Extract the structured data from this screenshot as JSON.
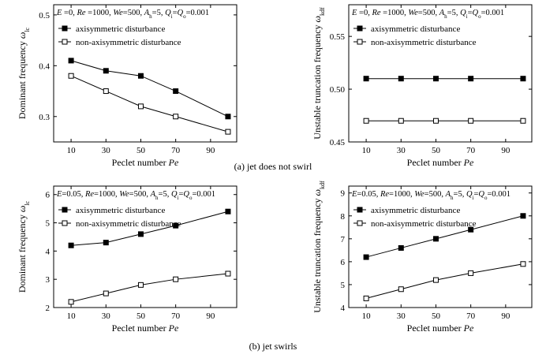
{
  "caption_a": "(a) jet does not swirl",
  "caption_b": "(b) jet swirls",
  "colors": {
    "line": "#000000",
    "background": "#ffffff"
  },
  "chart_data": [
    {
      "type": "line",
      "panel": "a-left",
      "condition": "E =0, Re =1000, We=500, A_h=5, Q_i=Q_o=0.001",
      "xlabel": "Peclet number Pe",
      "ylabel": "Dominant frequency ω_lc",
      "xticks": [
        10,
        30,
        50,
        70,
        90
      ],
      "yticks": [
        0.3,
        0.4,
        0.5
      ],
      "xlim": [
        0,
        105
      ],
      "ylim": [
        0.25,
        0.52
      ],
      "x": [
        10,
        30,
        50,
        70,
        100
      ],
      "series": [
        {
          "name": "axisymmetric disturbance",
          "marker": "filled-square",
          "values": [
            0.41,
            0.39,
            0.38,
            0.35,
            0.3
          ]
        },
        {
          "name": "non-axisymmetric disturbance",
          "marker": "open-square",
          "values": [
            0.38,
            0.35,
            0.32,
            0.3,
            0.27
          ]
        }
      ],
      "legend": "top-left"
    },
    {
      "type": "line",
      "panel": "a-right",
      "condition": "E =0, Re =1000, We=500, A_h=5, Q_i=Q_o=0.001",
      "xlabel": "Peclet number Pe",
      "ylabel": "Unstable truncation frequency ω_kdf",
      "xticks": [
        10,
        30,
        50,
        70,
        90
      ],
      "yticks": [
        0.45,
        0.5,
        0.55
      ],
      "xlim": [
        0,
        105
      ],
      "ylim": [
        0.45,
        0.58
      ],
      "x": [
        10,
        30,
        50,
        70,
        100
      ],
      "series": [
        {
          "name": "axisymmetric disturbance",
          "marker": "filled-square",
          "values": [
            0.51,
            0.51,
            0.51,
            0.51,
            0.51
          ]
        },
        {
          "name": "non-axisymmetric disturbance",
          "marker": "open-square",
          "values": [
            0.47,
            0.47,
            0.47,
            0.47,
            0.47
          ]
        }
      ],
      "legend": "top-left"
    },
    {
      "type": "line",
      "panel": "b-left",
      "condition": "E=0.05, Re=1000, We=500, A_h=5, Q_i=Q_o=0.001",
      "xlabel": "Peclet number Pe",
      "ylabel": "Dominant frequency ω_lc",
      "xticks": [
        10,
        30,
        50,
        70,
        90
      ],
      "yticks": [
        2,
        3,
        4,
        5,
        6
      ],
      "xlim": [
        0,
        105
      ],
      "ylim": [
        2,
        6.3
      ],
      "x": [
        10,
        30,
        50,
        70,
        100
      ],
      "series": [
        {
          "name": "axisymmetric disturbance",
          "marker": "filled-square",
          "values": [
            4.2,
            4.3,
            4.6,
            4.9,
            5.4
          ]
        },
        {
          "name": "non-axisymmetric disturbance",
          "marker": "open-square",
          "values": [
            2.2,
            2.5,
            2.8,
            3.0,
            3.2
          ]
        }
      ],
      "legend": "top-left"
    },
    {
      "type": "line",
      "panel": "b-right",
      "condition": "E=0.05, Re=1000, We=500, A_h=5, Q_i=Q_o=0.001",
      "xlabel": "Peclet number Pe",
      "ylabel": "Unstable truncation frequency ω_kdf",
      "xticks": [
        10,
        30,
        50,
        70,
        90
      ],
      "yticks": [
        4,
        5,
        6,
        7,
        8,
        9
      ],
      "xlim": [
        0,
        105
      ],
      "ylim": [
        4,
        9.3
      ],
      "x": [
        10,
        30,
        50,
        70,
        100
      ],
      "series": [
        {
          "name": "axisymmetric disturbance",
          "marker": "filled-square",
          "values": [
            6.2,
            6.6,
            7.0,
            7.4,
            8.0
          ]
        },
        {
          "name": "non-axisymmetric disturbance",
          "marker": "open-square",
          "values": [
            4.4,
            4.8,
            5.2,
            5.5,
            5.9
          ]
        }
      ],
      "legend": "top-left"
    }
  ]
}
